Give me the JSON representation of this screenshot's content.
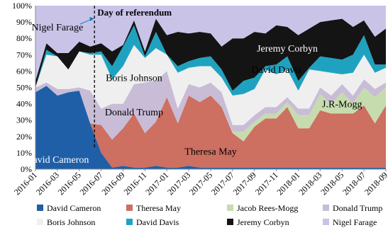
{
  "chart_data": {
    "type": "area",
    "stacked": true,
    "normalized": true,
    "title": "",
    "xlabel": "",
    "ylabel": "",
    "ylim": [
      0,
      100
    ],
    "y_ticks": [
      "0%",
      "10%",
      "20%",
      "30%",
      "40%",
      "50%",
      "60%",
      "70%",
      "80%",
      "90%",
      "100%"
    ],
    "x": [
      "2016-01",
      "2016-02",
      "2016-03",
      "2016-04",
      "2016-05",
      "2016-06",
      "2016-07",
      "2016-08",
      "2016-09",
      "2016-10",
      "2016-11",
      "2016-12",
      "2017-01",
      "2017-02",
      "2017-03",
      "2017-04",
      "2017-05",
      "2017-06",
      "2017-07",
      "2017-08",
      "2017-09",
      "2017-10",
      "2017-11",
      "2017-12",
      "2018-01",
      "2018-02",
      "2018-03",
      "2018-04",
      "2018-05",
      "2018-06",
      "2018-07",
      "2018-08",
      "2018-09"
    ],
    "x_tick_labels": [
      "2016-01",
      "2016-03",
      "2016-05",
      "2016-07",
      "2016-09",
      "2016-11",
      "2017-01",
      "2017-03",
      "2017-05",
      "2017-07",
      "2017-09",
      "2017-11",
      "2018-01",
      "2018-03",
      "2018-05",
      "2018-07",
      "2018-09"
    ],
    "grid": false,
    "legend_position": "bottom",
    "series": [
      {
        "name": "David Cameron",
        "color": "#1f5fa8",
        "values": [
          47,
          51,
          45,
          47,
          48,
          28,
          10,
          1,
          2,
          1,
          1,
          2,
          1,
          1,
          2,
          1,
          1,
          1,
          1,
          1,
          1,
          1,
          1,
          1,
          1,
          1,
          1,
          1,
          1,
          1,
          1,
          1,
          1
        ]
      },
      {
        "name": "Theresa May",
        "color": "#cd6f61",
        "values": [
          0,
          0,
          0,
          0,
          0,
          0,
          17,
          17,
          23,
          33,
          21,
          27,
          43,
          27,
          43,
          40,
          44,
          37,
          21,
          16,
          25,
          30,
          30,
          37,
          24,
          24,
          35,
          33,
          33,
          33,
          38,
          27,
          38
        ]
      },
      {
        "name": "Jacob Rees-Mogg",
        "color": "#c6dcae",
        "values": [
          0,
          0,
          0,
          0,
          0,
          0,
          0,
          0,
          0,
          0,
          0,
          0,
          0,
          0,
          0,
          0,
          0,
          0,
          1,
          6,
          3,
          3,
          3,
          3,
          8,
          8,
          10,
          6,
          13,
          6,
          11,
          16,
          11
        ]
      },
      {
        "name": "Donald Trump",
        "color": "#c8bcd6",
        "values": [
          3,
          2,
          4,
          2,
          2,
          20,
          10,
          22,
          15,
          18,
          31,
          25,
          16,
          9,
          7,
          9,
          8,
          9,
          4,
          4,
          4,
          4,
          4,
          3,
          4,
          4,
          4,
          5,
          5,
          5,
          5,
          5,
          3
        ]
      },
      {
        "name": "Boris Johnson",
        "color": "#efefef",
        "values": [
          0,
          17,
          20,
          12,
          22,
          22,
          33,
          15,
          23,
          24,
          15,
          20,
          10,
          22,
          10,
          13,
          10,
          9,
          18,
          19,
          16,
          23,
          20,
          17,
          11,
          24,
          10,
          14,
          6,
          14,
          15,
          10,
          9
        ]
      },
      {
        "name": "David Davis",
        "color": "#1fa2c0",
        "values": [
          0,
          3,
          0,
          0,
          0,
          1,
          2,
          8,
          12,
          12,
          1,
          10,
          0,
          4,
          4,
          5,
          6,
          5,
          3,
          8,
          7,
          2,
          6,
          8,
          6,
          1,
          9,
          9,
          9,
          11,
          12,
          5,
          2
        ]
      },
      {
        "name": "Jeremy Corbyn",
        "color": "#141414",
        "values": [
          4,
          4,
          2,
          10,
          6,
          4,
          5,
          9,
          1,
          3,
          3,
          8,
          12,
          21,
          17,
          16,
          14,
          14,
          32,
          26,
          28,
          20,
          24,
          18,
          28,
          24,
          21,
          23,
          25,
          17,
          9,
          17,
          22
        ]
      },
      {
        "name": "Nigel Farage",
        "color": "#cac3e8",
        "values": [
          46,
          23,
          29,
          29,
          22,
          25,
          23,
          28,
          24,
          9,
          28,
          8,
          18,
          16,
          17,
          16,
          17,
          25,
          20,
          20,
          16,
          17,
          12,
          13,
          18,
          14,
          10,
          9,
          8,
          13,
          9,
          19,
          14
        ]
      }
    ],
    "annotations": [
      {
        "text": "Day of referendum",
        "x": "2016-06",
        "y": 96,
        "vertical_line": true
      },
      {
        "text": "Nigel Farage",
        "x": "2016-03",
        "y": 87
      },
      {
        "text": "Jeremy Corbyn",
        "x": "2017-12",
        "y": 74
      },
      {
        "text": "David Davis",
        "x": "2017-11",
        "y": 61
      },
      {
        "text": "Boris Johnson",
        "x": "2016-10",
        "y": 56
      },
      {
        "text": "Donald Trump",
        "x": "2016-10",
        "y": 35
      },
      {
        "text": "J.R-Mogg",
        "x": "2018-05",
        "y": 40
      },
      {
        "text": "Theresa May",
        "x": "2017-05",
        "y": 11
      },
      {
        "text": "David Cameron",
        "x": "2016-03",
        "y": 6
      }
    ]
  }
}
